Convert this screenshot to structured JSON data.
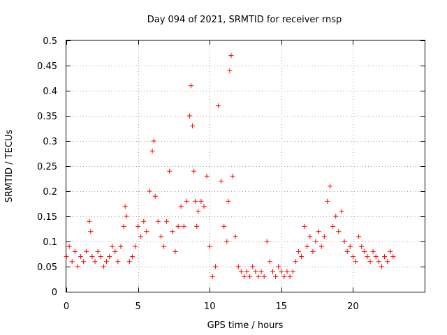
{
  "chart_data": {
    "type": "scatter",
    "title": "Day 094 of 2021, SRMTID for receiver rnsp",
    "xlabel": "GPS time / hours",
    "ylabel": "SRMTID / TECUs",
    "xlim": [
      0,
      25
    ],
    "ylim": [
      0,
      0.5
    ],
    "grid": true,
    "marker": "+",
    "color": "#ff0000",
    "x_ticks": [
      0,
      5,
      10,
      15,
      20
    ],
    "x_tick_labels": [
      "0",
      "5",
      "10",
      "15",
      "20"
    ],
    "y_ticks": [
      0,
      0.05,
      0.1,
      0.15,
      0.2,
      0.25,
      0.3,
      0.35,
      0.4,
      0.45,
      0.5
    ],
    "y_tick_labels": [
      "0",
      "0.05",
      "0.1",
      "0.15",
      "0.2",
      "0.25",
      "0.3",
      "0.35",
      "0.4",
      "0.45",
      "0.5"
    ],
    "series": [
      {
        "name": "SRMTID",
        "x": [
          0.0,
          0.2,
          0.4,
          0.6,
          0.8,
          1.0,
          1.2,
          1.4,
          1.6,
          1.7,
          1.8,
          2.0,
          2.2,
          2.4,
          2.6,
          2.8,
          3.0,
          3.2,
          3.4,
          3.6,
          3.8,
          4.0,
          4.1,
          4.2,
          4.4,
          4.6,
          4.8,
          5.0,
          5.2,
          5.4,
          5.6,
          5.8,
          6.0,
          6.1,
          6.2,
          6.4,
          6.6,
          6.8,
          7.0,
          7.2,
          7.4,
          7.6,
          7.8,
          8.0,
          8.2,
          8.4,
          8.6,
          8.7,
          8.8,
          8.9,
          9.0,
          9.1,
          9.2,
          9.4,
          9.6,
          9.8,
          10.0,
          10.2,
          10.4,
          10.6,
          10.8,
          11.0,
          11.2,
          11.3,
          11.4,
          11.5,
          11.6,
          11.8,
          12.0,
          12.2,
          12.4,
          12.6,
          12.8,
          13.0,
          13.2,
          13.4,
          13.6,
          13.8,
          14.0,
          14.2,
          14.4,
          14.6,
          14.8,
          15.0,
          15.2,
          15.4,
          15.6,
          15.8,
          16.0,
          16.2,
          16.4,
          16.6,
          16.8,
          17.0,
          17.2,
          17.4,
          17.6,
          17.8,
          18.0,
          18.2,
          18.4,
          18.6,
          18.8,
          19.0,
          19.2,
          19.4,
          19.6,
          19.8,
          20.0,
          20.2,
          20.4,
          20.6,
          20.8,
          21.0,
          21.2,
          21.4,
          21.6,
          21.8,
          22.0,
          22.2,
          22.4,
          22.6,
          22.8
        ],
        "y": [
          0.07,
          0.09,
          0.06,
          0.08,
          0.05,
          0.07,
          0.06,
          0.08,
          0.14,
          0.12,
          0.07,
          0.06,
          0.08,
          0.07,
          0.05,
          0.06,
          0.07,
          0.09,
          0.08,
          0.06,
          0.09,
          0.13,
          0.17,
          0.15,
          0.06,
          0.07,
          0.09,
          0.13,
          0.11,
          0.14,
          0.12,
          0.2,
          0.28,
          0.3,
          0.19,
          0.14,
          0.11,
          0.09,
          0.14,
          0.24,
          0.12,
          0.08,
          0.13,
          0.17,
          0.13,
          0.18,
          0.35,
          0.41,
          0.33,
          0.24,
          0.18,
          0.13,
          0.16,
          0.18,
          0.17,
          0.23,
          0.09,
          0.03,
          0.05,
          0.37,
          0.22,
          0.13,
          0.1,
          0.18,
          0.44,
          0.47,
          0.23,
          0.11,
          0.05,
          0.04,
          0.03,
          0.04,
          0.03,
          0.05,
          0.04,
          0.03,
          0.04,
          0.03,
          0.1,
          0.06,
          0.04,
          0.03,
          0.05,
          0.04,
          0.03,
          0.04,
          0.03,
          0.04,
          0.06,
          0.08,
          0.07,
          0.13,
          0.09,
          0.11,
          0.08,
          0.1,
          0.12,
          0.09,
          0.11,
          0.18,
          0.21,
          0.13,
          0.15,
          0.12,
          0.16,
          0.1,
          0.08,
          0.09,
          0.07,
          0.06,
          0.11,
          0.09,
          0.08,
          0.07,
          0.06,
          0.08,
          0.07,
          0.06,
          0.05,
          0.07,
          0.06,
          0.08,
          0.07
        ]
      }
    ]
  }
}
